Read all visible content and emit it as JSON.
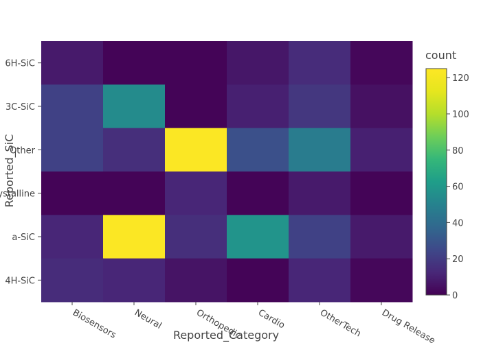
{
  "chart_data": {
    "type": "heatmap",
    "x_categories": [
      "Biosensors",
      "Neural",
      "Orthopedic",
      "Cardio",
      "OtherTech",
      "Drug Release"
    ],
    "y_categories": [
      "6H-SiC",
      "3C-SiC",
      "Other",
      "Crystalline",
      "a-SiC",
      "4H-SiC"
    ],
    "z": [
      [
        8,
        1,
        1,
        7,
        14,
        2
      ],
      [
        22,
        54,
        1,
        10,
        18,
        5
      ],
      [
        22,
        15,
        124,
        28,
        47,
        10
      ],
      [
        1,
        1,
        12,
        1,
        8,
        1
      ],
      [
        12,
        124,
        15,
        58,
        22,
        8
      ],
      [
        14,
        12,
        6,
        1,
        12,
        2
      ]
    ],
    "xlabel": "Reported_Category",
    "ylabel": "Reported_SiC",
    "colorbar": {
      "title": "count",
      "range": [
        0,
        125
      ],
      "ticks": [
        0,
        20,
        40,
        60,
        80,
        100,
        120
      ]
    },
    "colorscale": "viridis"
  }
}
